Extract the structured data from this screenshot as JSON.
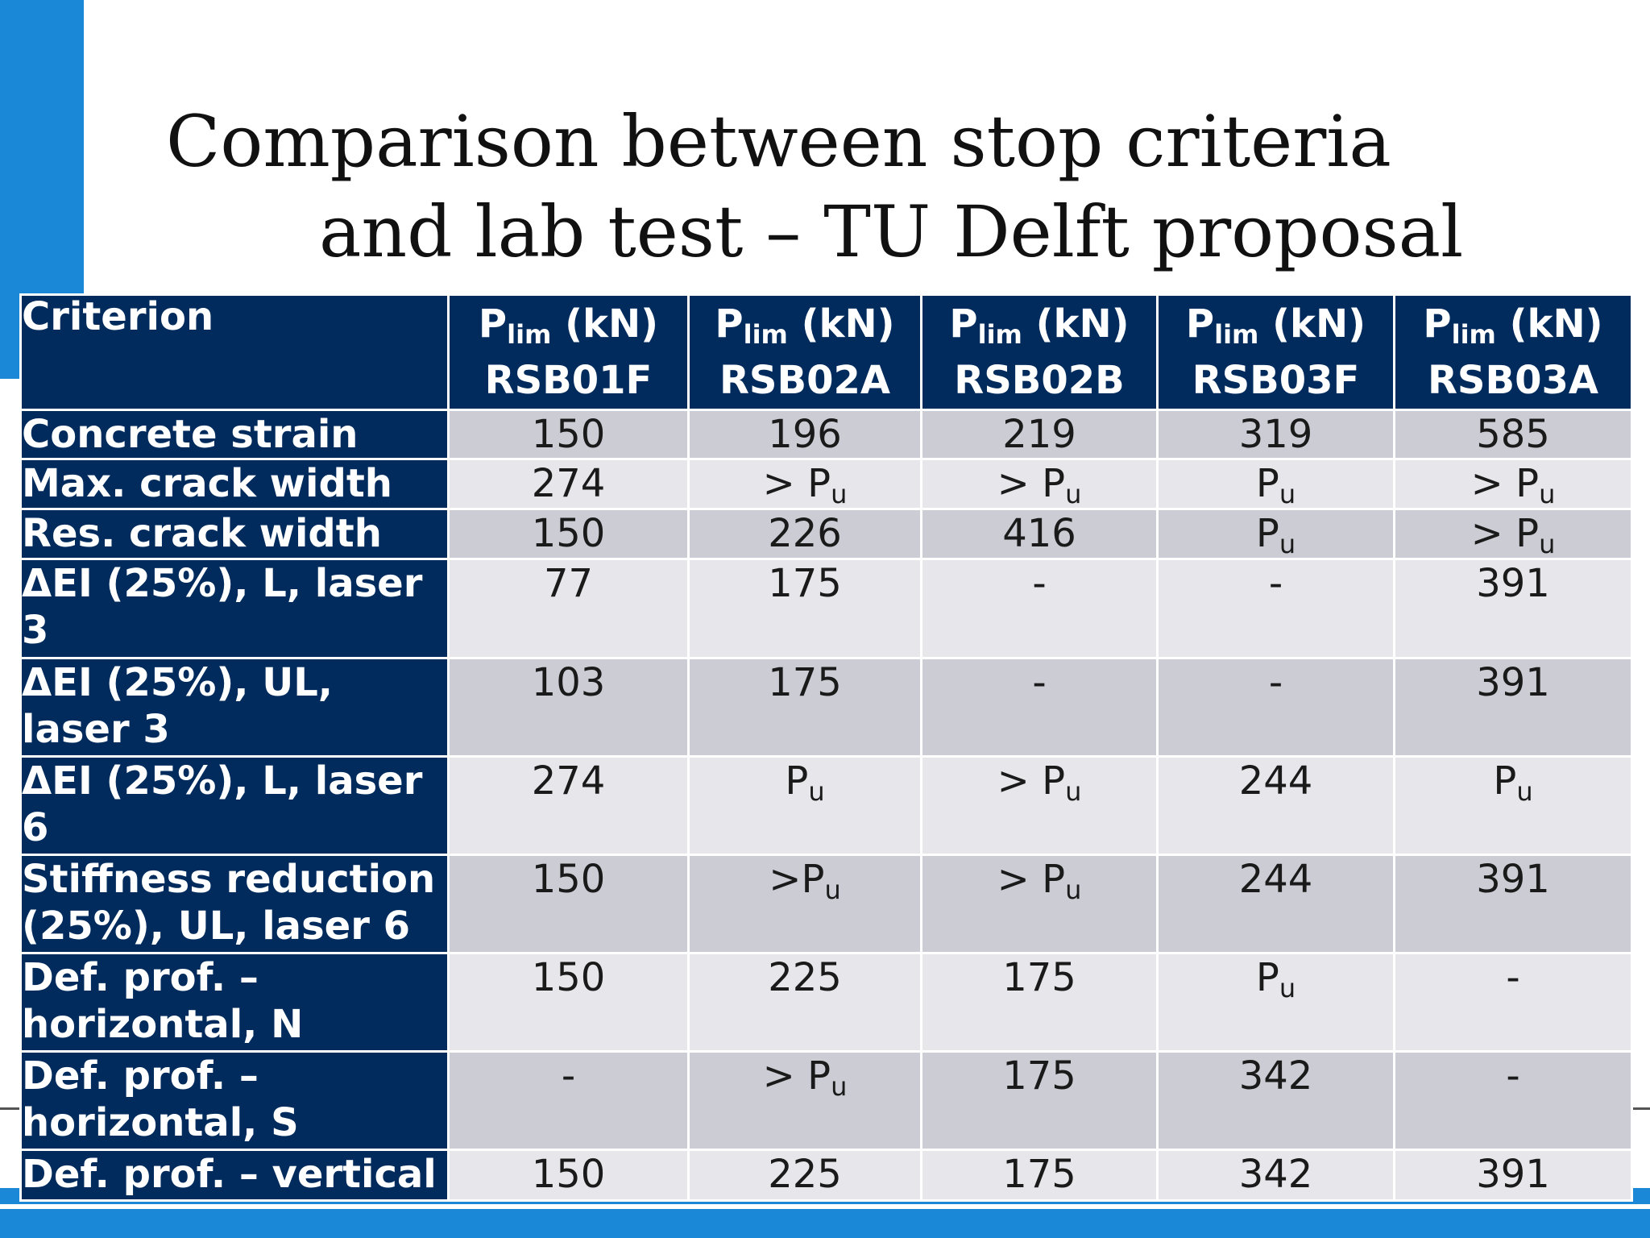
{
  "title": {
    "line1": "Comparison between stop criteria",
    "line2": "and lab test – TU Delft proposal"
  },
  "table": {
    "criterion_header": "Criterion",
    "col_prefix": "P",
    "col_subscript": "lim",
    "col_unit": " (kN)",
    "columns": [
      "RSB01F",
      "RSB02A",
      "RSB02B",
      "RSB03F",
      "RSB03A"
    ],
    "rows": [
      {
        "label": "Concrete strain",
        "cells": [
          {
            "main": "150",
            "sub": ""
          },
          {
            "main": "196",
            "sub": ""
          },
          {
            "main": "219",
            "sub": ""
          },
          {
            "main": "319",
            "sub": ""
          },
          {
            "main": "585",
            "sub": ""
          }
        ]
      },
      {
        "label": "Max. crack width",
        "cells": [
          {
            "main": "274",
            "sub": ""
          },
          {
            "main": "> P",
            "sub": "u"
          },
          {
            "main": "> P",
            "sub": "u"
          },
          {
            "main": "P",
            "sub": "u"
          },
          {
            "main": "> P",
            "sub": "u"
          }
        ]
      },
      {
        "label": "Res. crack width",
        "cells": [
          {
            "main": "150",
            "sub": ""
          },
          {
            "main": "226",
            "sub": ""
          },
          {
            "main": "416",
            "sub": ""
          },
          {
            "main": "P",
            "sub": "u"
          },
          {
            "main": "> P",
            "sub": "u"
          }
        ]
      },
      {
        "label": "ΔEI (25%), L, laser 3",
        "cells": [
          {
            "main": "77",
            "sub": ""
          },
          {
            "main": "175",
            "sub": ""
          },
          {
            "main": "-",
            "sub": ""
          },
          {
            "main": "-",
            "sub": ""
          },
          {
            "main": "391",
            "sub": ""
          }
        ]
      },
      {
        "label": "ΔEI (25%), UL, laser 3",
        "cells": [
          {
            "main": "103",
            "sub": ""
          },
          {
            "main": "175",
            "sub": ""
          },
          {
            "main": "-",
            "sub": ""
          },
          {
            "main": "-",
            "sub": ""
          },
          {
            "main": "391",
            "sub": ""
          }
        ]
      },
      {
        "label": "ΔEI (25%), L, laser 6",
        "cells": [
          {
            "main": "274",
            "sub": ""
          },
          {
            "main": "P",
            "sub": "u"
          },
          {
            "main": "> P",
            "sub": "u"
          },
          {
            "main": "244",
            "sub": ""
          },
          {
            "main": "P",
            "sub": "u"
          }
        ]
      },
      {
        "label": "Stiffness reduction (25%), UL, laser 6",
        "cells": [
          {
            "main": "150",
            "sub": ""
          },
          {
            "main": ">P",
            "sub": "u"
          },
          {
            "main": "> P",
            "sub": "u"
          },
          {
            "main": "244",
            "sub": ""
          },
          {
            "main": "391",
            "sub": ""
          }
        ]
      },
      {
        "label": "Def. prof. – horizontal, N",
        "cells": [
          {
            "main": "150",
            "sub": ""
          },
          {
            "main": "225",
            "sub": ""
          },
          {
            "main": "175",
            "sub": ""
          },
          {
            "main": "P",
            "sub": "u"
          },
          {
            "main": "-",
            "sub": ""
          }
        ]
      },
      {
        "label": "Def. prof. – horizontal, S",
        "cells": [
          {
            "main": "-",
            "sub": ""
          },
          {
            "main": "> P",
            "sub": "u"
          },
          {
            "main": "175",
            "sub": ""
          },
          {
            "main": "342",
            "sub": ""
          },
          {
            "main": "-",
            "sub": ""
          }
        ]
      },
      {
        "label": "Def. prof. – vertical",
        "cells": [
          {
            "main": "150",
            "sub": ""
          },
          {
            "main": "225",
            "sub": ""
          },
          {
            "main": "175",
            "sub": ""
          },
          {
            "main": "342",
            "sub": ""
          },
          {
            "main": "391",
            "sub": ""
          }
        ]
      }
    ]
  },
  "colors": {
    "accent_blue": "#1a88d6",
    "header_navy": "#002b5c",
    "row_dark": "#ccccd4",
    "row_light": "#e7e7eb"
  }
}
